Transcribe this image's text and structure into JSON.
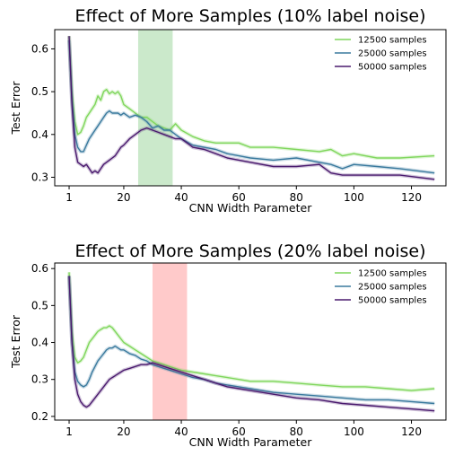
{
  "chart_data": [
    {
      "type": "line",
      "title": "Effect of More Samples (10% label noise)",
      "xlabel": "CNN Width Parameter",
      "ylabel": "Test Error",
      "xlim": [
        -4,
        132
      ],
      "ylim": [
        0.28,
        0.645
      ],
      "xticks": [
        1,
        20,
        40,
        60,
        80,
        100,
        120
      ],
      "yticks": [
        0.3,
        0.4,
        0.5,
        0.6
      ],
      "legend_position": "upper-right",
      "shaded_region": {
        "x": [
          25,
          37
        ],
        "color": "#6abf69",
        "opacity": 0.35
      },
      "series": [
        {
          "name": "12500 samples",
          "color": "#7fd65c",
          "x": [
            1,
            2,
            3,
            4,
            5,
            6,
            7,
            8,
            9,
            10,
            11,
            12,
            13,
            14,
            15,
            16,
            17,
            18,
            19,
            20,
            22,
            24,
            26,
            28,
            30,
            32,
            34,
            36,
            38,
            40,
            44,
            48,
            52,
            56,
            60,
            64,
            72,
            80,
            88,
            92,
            96,
            100,
            108,
            116,
            128
          ],
          "y": [
            0.63,
            0.5,
            0.43,
            0.4,
            0.405,
            0.42,
            0.44,
            0.45,
            0.46,
            0.47,
            0.49,
            0.48,
            0.5,
            0.505,
            0.495,
            0.5,
            0.495,
            0.5,
            0.49,
            0.47,
            0.46,
            0.45,
            0.44,
            0.44,
            0.43,
            0.42,
            0.415,
            0.41,
            0.425,
            0.41,
            0.395,
            0.385,
            0.38,
            0.38,
            0.38,
            0.37,
            0.37,
            0.365,
            0.36,
            0.365,
            0.35,
            0.355,
            0.345,
            0.345,
            0.35
          ]
        },
        {
          "name": "25000 samples",
          "color": "#3a7a9e",
          "x": [
            1,
            2,
            3,
            4,
            5,
            6,
            7,
            8,
            9,
            10,
            11,
            12,
            13,
            14,
            15,
            16,
            17,
            18,
            19,
            20,
            22,
            24,
            26,
            28,
            30,
            32,
            34,
            36,
            38,
            40,
            44,
            48,
            52,
            56,
            60,
            64,
            72,
            80,
            88,
            92,
            96,
            100,
            108,
            116,
            128
          ],
          "y": [
            0.62,
            0.48,
            0.4,
            0.37,
            0.36,
            0.36,
            0.375,
            0.39,
            0.4,
            0.41,
            0.42,
            0.43,
            0.44,
            0.45,
            0.455,
            0.45,
            0.45,
            0.45,
            0.445,
            0.45,
            0.44,
            0.445,
            0.44,
            0.43,
            0.415,
            0.42,
            0.41,
            0.41,
            0.4,
            0.39,
            0.375,
            0.37,
            0.365,
            0.355,
            0.35,
            0.345,
            0.34,
            0.345,
            0.335,
            0.33,
            0.32,
            0.33,
            0.325,
            0.32,
            0.31
          ]
        },
        {
          "name": "50000 samples",
          "color": "#4a1a6e",
          "x": [
            1,
            2,
            3,
            4,
            5,
            6,
            7,
            8,
            9,
            10,
            11,
            12,
            13,
            14,
            15,
            16,
            17,
            18,
            19,
            20,
            22,
            24,
            26,
            28,
            30,
            32,
            34,
            36,
            38,
            40,
            44,
            48,
            52,
            56,
            60,
            64,
            72,
            80,
            88,
            92,
            96,
            100,
            108,
            116,
            128
          ],
          "y": [
            0.63,
            0.47,
            0.37,
            0.335,
            0.33,
            0.325,
            0.33,
            0.32,
            0.31,
            0.315,
            0.31,
            0.32,
            0.33,
            0.335,
            0.34,
            0.345,
            0.35,
            0.36,
            0.37,
            0.375,
            0.39,
            0.4,
            0.41,
            0.415,
            0.41,
            0.405,
            0.4,
            0.395,
            0.39,
            0.39,
            0.37,
            0.365,
            0.355,
            0.345,
            0.34,
            0.335,
            0.325,
            0.325,
            0.33,
            0.31,
            0.305,
            0.305,
            0.305,
            0.305,
            0.295
          ]
        }
      ]
    },
    {
      "type": "line",
      "title": "Effect of More Samples (20% label noise)",
      "xlabel": "CNN Width Parameter",
      "ylabel": "Test Error",
      "xlim": [
        -4,
        132
      ],
      "ylim": [
        0.19,
        0.615
      ],
      "xticks": [
        1,
        20,
        40,
        60,
        80,
        100,
        120
      ],
      "yticks": [
        0.2,
        0.3,
        0.4,
        0.5,
        0.6
      ],
      "legend_position": "upper-right",
      "shaded_region": {
        "x": [
          30,
          42
        ],
        "color": "#ff8a8a",
        "opacity": 0.45
      },
      "series": [
        {
          "name": "12500 samples",
          "color": "#7fd65c",
          "x": [
            1,
            2,
            3,
            4,
            5,
            6,
            7,
            8,
            9,
            10,
            11,
            12,
            13,
            14,
            15,
            16,
            17,
            18,
            19,
            20,
            22,
            24,
            26,
            28,
            30,
            32,
            34,
            36,
            38,
            40,
            44,
            48,
            52,
            56,
            60,
            64,
            72,
            80,
            88,
            96,
            104,
            112,
            120,
            128
          ],
          "y": [
            0.59,
            0.43,
            0.36,
            0.345,
            0.35,
            0.36,
            0.38,
            0.4,
            0.41,
            0.42,
            0.43,
            0.435,
            0.44,
            0.44,
            0.445,
            0.44,
            0.43,
            0.42,
            0.41,
            0.4,
            0.39,
            0.38,
            0.37,
            0.36,
            0.35,
            0.345,
            0.34,
            0.335,
            0.33,
            0.325,
            0.32,
            0.315,
            0.31,
            0.305,
            0.3,
            0.295,
            0.295,
            0.29,
            0.285,
            0.28,
            0.28,
            0.275,
            0.27,
            0.275
          ]
        },
        {
          "name": "25000 samples",
          "color": "#3a7a9e",
          "x": [
            1,
            2,
            3,
            4,
            5,
            6,
            7,
            8,
            9,
            10,
            11,
            12,
            13,
            14,
            15,
            16,
            17,
            18,
            19,
            20,
            22,
            24,
            26,
            28,
            30,
            32,
            34,
            36,
            38,
            40,
            44,
            48,
            52,
            56,
            60,
            64,
            72,
            80,
            88,
            96,
            104,
            112,
            120,
            128
          ],
          "y": [
            0.58,
            0.4,
            0.32,
            0.295,
            0.285,
            0.28,
            0.285,
            0.3,
            0.32,
            0.335,
            0.35,
            0.36,
            0.37,
            0.38,
            0.385,
            0.385,
            0.39,
            0.385,
            0.38,
            0.38,
            0.37,
            0.365,
            0.355,
            0.35,
            0.34,
            0.335,
            0.33,
            0.325,
            0.32,
            0.315,
            0.305,
            0.3,
            0.29,
            0.285,
            0.28,
            0.275,
            0.265,
            0.26,
            0.255,
            0.25,
            0.245,
            0.245,
            0.24,
            0.235
          ]
        },
        {
          "name": "50000 samples",
          "color": "#4a1a6e",
          "x": [
            1,
            2,
            3,
            4,
            5,
            6,
            7,
            8,
            9,
            10,
            11,
            12,
            13,
            14,
            15,
            16,
            17,
            18,
            19,
            20,
            22,
            24,
            26,
            28,
            30,
            32,
            34,
            36,
            38,
            40,
            44,
            48,
            52,
            56,
            60,
            64,
            72,
            80,
            88,
            96,
            104,
            112,
            120,
            128
          ],
          "y": [
            0.58,
            0.4,
            0.3,
            0.26,
            0.24,
            0.23,
            0.225,
            0.23,
            0.24,
            0.25,
            0.26,
            0.27,
            0.28,
            0.29,
            0.3,
            0.305,
            0.31,
            0.315,
            0.32,
            0.325,
            0.33,
            0.335,
            0.34,
            0.34,
            0.345,
            0.34,
            0.335,
            0.33,
            0.325,
            0.32,
            0.31,
            0.3,
            0.29,
            0.28,
            0.275,
            0.27,
            0.26,
            0.25,
            0.245,
            0.235,
            0.23,
            0.225,
            0.22,
            0.215
          ]
        }
      ]
    }
  ]
}
